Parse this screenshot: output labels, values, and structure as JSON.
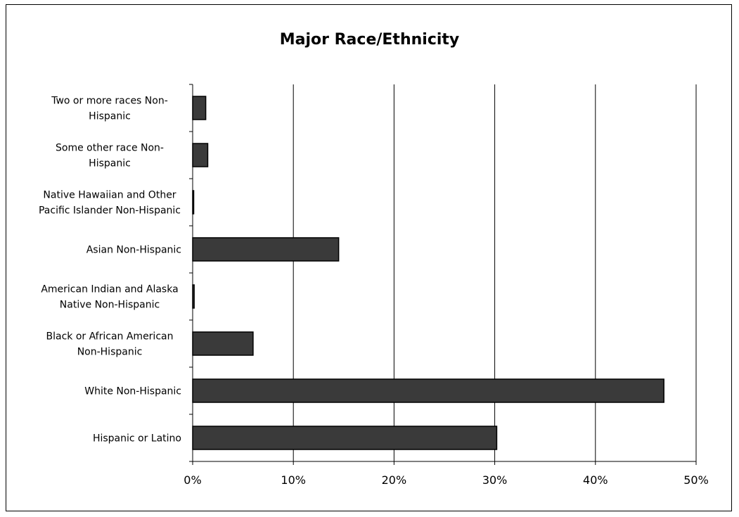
{
  "chart_data": {
    "type": "bar",
    "orientation": "horizontal",
    "title": "Major Race/Ethnicity",
    "xlabel": "",
    "ylabel": "",
    "categories": [
      "Hispanic or Latino",
      "White Non-Hispanic",
      "Black or African American Non-Hispanic",
      "American Indian and Alaska Native Non-Hispanic",
      "Asian Non-Hispanic",
      "Native Hawaiian and Other Pacific Islander Non-Hispanic",
      "Some other race Non-Hispanic",
      "Two or more races Non-Hispanic"
    ],
    "category_label_lines": [
      [
        "Hispanic or Latino"
      ],
      [
        "White Non-Hispanic"
      ],
      [
        "Black or African American",
        "Non-Hispanic"
      ],
      [
        "American Indian and Alaska",
        "Native Non-Hispanic"
      ],
      [
        "Asian Non-Hispanic"
      ],
      [
        "Native Hawaiian and Other",
        "Pacific Islander Non-Hispanic"
      ],
      [
        "Some other race Non-",
        "Hispanic"
      ],
      [
        "Two or more races Non-",
        "Hispanic"
      ]
    ],
    "values": [
      30.2,
      46.8,
      6.0,
      0.15,
      14.5,
      0.1,
      1.5,
      1.3
    ],
    "xlim": [
      0,
      50
    ],
    "xticks": [
      0,
      10,
      20,
      30,
      40,
      50
    ],
    "xtick_labels": [
      "0%",
      "10%",
      "20%",
      "30%",
      "40%",
      "50%"
    ],
    "grid": "vertical",
    "legend": "none",
    "colors": {
      "bar_fill": "#3a3a3a",
      "bar_stroke": "#000000",
      "grid": "#000000"
    }
  }
}
